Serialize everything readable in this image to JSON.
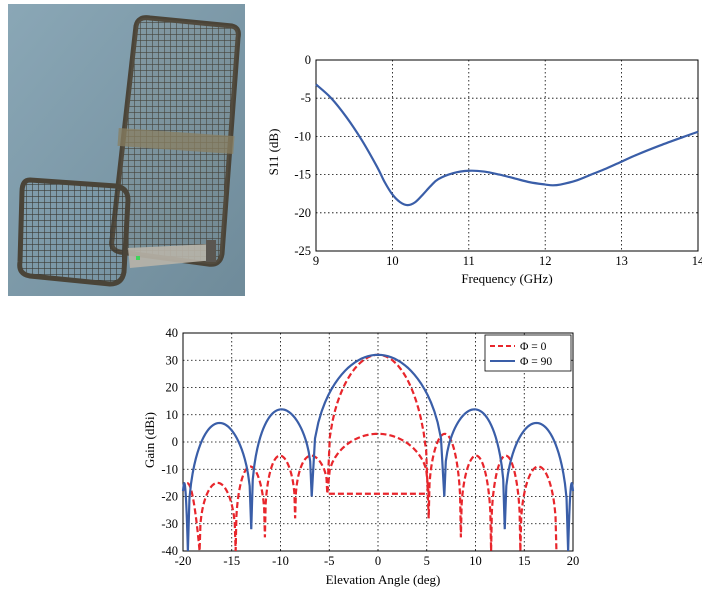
{
  "photo": {
    "colors": {
      "background": "#7e9aaa",
      "mesh": "#3b3a34",
      "frame": "#4a4438"
    }
  },
  "chart_data": [
    {
      "type": "line",
      "title": "",
      "xlabel": "Frequency (GHz)",
      "ylabel": "S11 (dB)",
      "xlim": [
        9,
        14
      ],
      "ylim": [
        -25,
        0
      ],
      "xticks": [
        9,
        10,
        11,
        12,
        13,
        14
      ],
      "yticks": [
        0,
        -5,
        -10,
        -15,
        -20,
        -25
      ],
      "xtick_labels": [
        "9",
        "10",
        "11",
        "12",
        "13",
        "14"
      ],
      "ytick_labels": [
        "0",
        "-5",
        "-10",
        "-15",
        "-20",
        "-25"
      ],
      "grid": "dotted",
      "series": [
        {
          "color": "#3a5ea8",
          "style": "solid",
          "x": [
            9.0,
            9.2,
            9.4,
            9.6,
            9.8,
            9.9,
            10.0,
            10.1,
            10.2,
            10.3,
            10.4,
            10.5,
            10.6,
            10.8,
            11.0,
            11.2,
            11.4,
            11.6,
            11.8,
            12.0,
            12.1,
            12.2,
            12.4,
            12.6,
            12.8,
            13.0,
            13.2,
            13.5,
            13.8,
            14.0
          ],
          "y": [
            -3.2,
            -5.0,
            -7.5,
            -10.5,
            -14.0,
            -16.0,
            -17.6,
            -18.6,
            -19.0,
            -18.6,
            -17.6,
            -16.5,
            -15.6,
            -14.8,
            -14.5,
            -14.6,
            -15.0,
            -15.5,
            -16.0,
            -16.3,
            -16.4,
            -16.3,
            -15.8,
            -15.0,
            -14.2,
            -13.3,
            -12.4,
            -11.2,
            -10.1,
            -9.4
          ]
        }
      ]
    },
    {
      "type": "line",
      "title": "",
      "xlabel": "Elevation Angle (deg)",
      "ylabel": "Gain (dBi)",
      "xlim": [
        -20,
        20
      ],
      "ylim": [
        -40,
        40
      ],
      "xticks": [
        -20,
        -15,
        -10,
        -5,
        0,
        5,
        10,
        15,
        20
      ],
      "yticks": [
        40,
        30,
        20,
        10,
        0,
        -10,
        -20,
        -30,
        -40
      ],
      "xtick_labels": [
        "-20",
        "-15",
        "-10",
        "-5",
        "0",
        "5",
        "10",
        "15",
        "20"
      ],
      "ytick_labels": [
        "40",
        "30",
        "20",
        "10",
        "0",
        "-10",
        "-20",
        "-30",
        "-40"
      ],
      "grid": "dotted",
      "legend": "top-right",
      "series": [
        {
          "name": "Φ = 0",
          "color": "#e8262c",
          "style": "dashed",
          "peak_gain": 32,
          "nulls": [
            -18.3,
            -14.6,
            -11.6,
            -8.5,
            -5.2,
            5.2,
            8.5,
            11.6,
            14.6,
            18.3
          ],
          "lobe_peaks": [
            -16,
            -13,
            -10,
            -7,
            -3.5,
            3.5,
            7,
            10,
            13,
            16
          ],
          "lobe_peak_gain": [
            -15,
            -9,
            -5,
            -5,
            3,
            3,
            -5,
            -5,
            -9,
            -15
          ],
          "null_floor": [
            -40,
            -40,
            -35,
            -28,
            -19,
            -19,
            -28,
            -35,
            -40,
            -40
          ],
          "edge_gain": -18
        },
        {
          "name": "Φ = 90",
          "color": "#3a5ea8",
          "style": "solid",
          "peak_gain": 32,
          "nulls": [
            -19.5,
            -13.0,
            -6.8,
            6.8,
            13.0,
            19.5
          ],
          "lobe_peaks": [
            -16,
            -10,
            10,
            16
          ],
          "lobe_peak_gain": [
            7,
            12,
            12,
            7
          ],
          "null_floor": [
            -40,
            -32,
            -20,
            -20,
            -32,
            -40
          ],
          "edge_gain": -18
        }
      ]
    }
  ]
}
